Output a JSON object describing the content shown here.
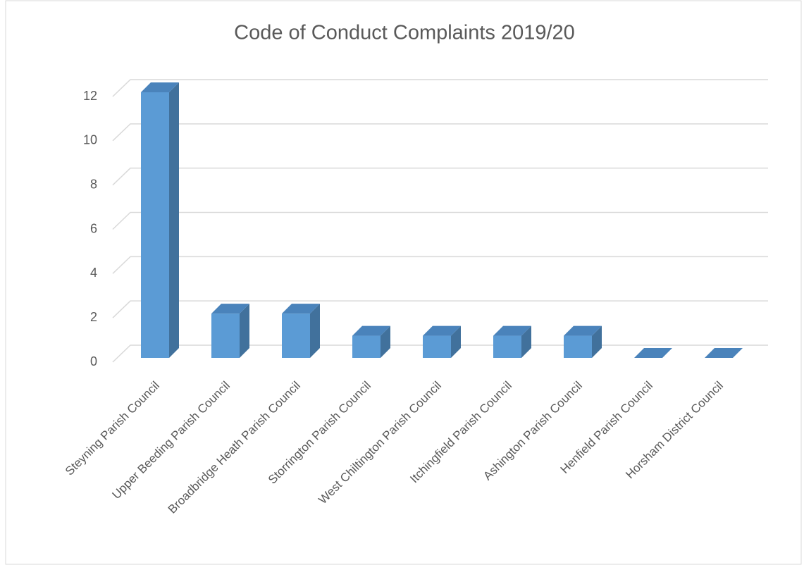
{
  "chart_data": {
    "type": "bar3d",
    "title": "Code of Conduct Complaints 2019/20",
    "categories": [
      "Steyning Parish Council",
      "Upper Beeding Parish Council",
      "Broadbridge Heath Parish Council",
      "Storrington Parish Council",
      "West Chiltington Parish Council",
      "Itchingfield Parish Council",
      "Ashington Parish Council",
      "Henfield Parish Council",
      "Horsham District Council"
    ],
    "values": [
      12,
      2,
      2,
      1,
      1,
      1,
      1,
      0,
      0
    ],
    "color": "#5b9bd5",
    "ylim": [
      0,
      12
    ],
    "yticks": [
      0,
      2,
      4,
      6,
      8,
      10,
      12
    ],
    "grid": true
  }
}
